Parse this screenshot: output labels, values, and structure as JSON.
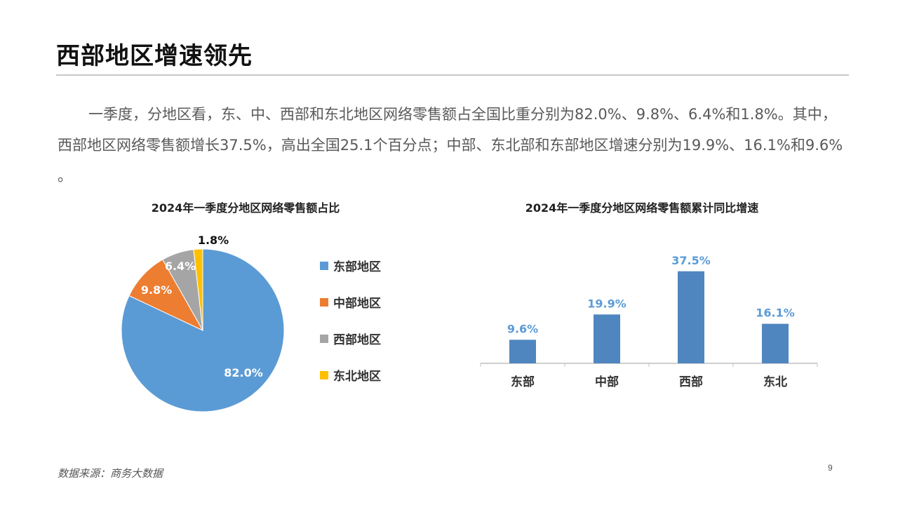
{
  "page": {
    "title": "西部地区增速领先",
    "paragraph": "一季度，分地区看，东、中、西部和东北地区网络零售额占全国比重分别为82.0%、9.8%、6.4%和1.8%。其中，西部地区网络零售额增长37.5%，高出全国25.1个百分点；中部、东北部和东部地区增速分别为19.9%、16.1%和9.6% 。",
    "source": "数据来源：商务大数据",
    "page_number": "9"
  },
  "chart_data": [
    {
      "type": "pie",
      "title": "2024年一季度分地区网络零售额占比",
      "categories": [
        "东部地区",
        "中部地区",
        "西部地区",
        "东北地区"
      ],
      "values": [
        82.0,
        9.8,
        6.4,
        1.8
      ],
      "labels": [
        "82.0%",
        "9.8%",
        "6.4%",
        "1.8%"
      ],
      "colors": [
        "#5B9BD5",
        "#ED7D31",
        "#A5A5A5",
        "#FFC000"
      ],
      "legend": "right"
    },
    {
      "type": "bar",
      "title": "2024年一季度分地区网络零售额累计同比增速",
      "categories": [
        "东部",
        "中部",
        "西部",
        "东北"
      ],
      "values": [
        9.6,
        19.9,
        37.5,
        16.1
      ],
      "labels": [
        "9.6%",
        "19.9%",
        "37.5%",
        "16.1%"
      ],
      "color": "#4F86C0",
      "label_color": "#5B9BD5",
      "grid": false
    }
  ]
}
